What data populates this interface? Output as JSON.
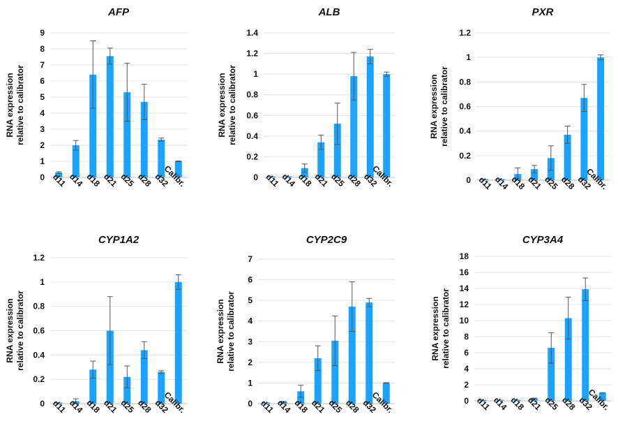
{
  "colors": {
    "bar": "#1aa3ff",
    "grid": "#e3e3e3",
    "axis": "#bfbfbf",
    "error": "#555555"
  },
  "chart_data": [
    {
      "type": "bar",
      "title": "AFP",
      "ylabel": [
        "RNA expression",
        "relative to calibrator"
      ],
      "categories": [
        "d11",
        "d14",
        "d18",
        "d21",
        "d25",
        "d28",
        "d32",
        "Calibr."
      ],
      "values": [
        0.3,
        2.0,
        6.4,
        7.55,
        5.3,
        4.7,
        2.35,
        1.0
      ],
      "errors": [
        0.05,
        0.3,
        2.1,
        0.5,
        1.8,
        1.1,
        0.1,
        0.02
      ],
      "ylim": [
        0,
        9
      ],
      "yticks": [
        "0",
        "1",
        "2",
        "3",
        "4",
        "5",
        "6",
        "7",
        "8",
        "9"
      ],
      "grid": true
    },
    {
      "type": "bar",
      "title": "ALB",
      "ylabel": [
        "RNA expression",
        "relative to calibrator"
      ],
      "categories": [
        "d11",
        "d14",
        "d18",
        "d21",
        "d25",
        "d28",
        "d32",
        "Calibr."
      ],
      "values": [
        0.0,
        0.0,
        0.09,
        0.34,
        0.52,
        0.98,
        1.17,
        1.0
      ],
      "errors": [
        0.0,
        0.0,
        0.04,
        0.07,
        0.2,
        0.23,
        0.07,
        0.02
      ],
      "ylim": [
        0,
        1.4
      ],
      "yticks": [
        "0",
        "0.2",
        "0.4",
        "0.6",
        "0.8",
        "1",
        "1.2",
        "1.4"
      ],
      "grid": true
    },
    {
      "type": "bar",
      "title": "PXR",
      "ylabel": [
        "RNA expression",
        "relative to calibrator"
      ],
      "categories": [
        "d11",
        "d14",
        "d18",
        "d21",
        "d25",
        "d28",
        "d32",
        "Calibr."
      ],
      "values": [
        0.0,
        0.01,
        0.05,
        0.09,
        0.18,
        0.37,
        0.67,
        1.0
      ],
      "errors": [
        0.0,
        0.0,
        0.05,
        0.03,
        0.1,
        0.07,
        0.11,
        0.02
      ],
      "ylim": [
        0,
        1.2
      ],
      "yticks": [
        "0",
        "0.2",
        "0.4",
        "0.6",
        "0.8",
        "1",
        "1.2"
      ],
      "grid": true
    },
    {
      "type": "bar",
      "title": "CYP1A2",
      "ylabel": [
        "RNA expression",
        "relative to calibrator"
      ],
      "categories": [
        "d11",
        "d14",
        "d18",
        "d21",
        "d25",
        "d28",
        "d32",
        "Calibr."
      ],
      "values": [
        0.0,
        0.02,
        0.28,
        0.6,
        0.22,
        0.44,
        0.26,
        1.0
      ],
      "errors": [
        0.0,
        0.02,
        0.07,
        0.28,
        0.09,
        0.07,
        0.01,
        0.06
      ],
      "ylim": [
        0,
        1.2
      ],
      "yticks": [
        "0",
        "0.2",
        "0.4",
        "0.6",
        "0.8",
        "1",
        "1.2"
      ],
      "grid": true
    },
    {
      "type": "bar",
      "title": "CYP2C9",
      "ylabel": [
        "RNA expression",
        "relative to calibrator"
      ],
      "categories": [
        "d11",
        "d14",
        "d18",
        "d21",
        "d25",
        "d28",
        "d32",
        "Calibr."
      ],
      "values": [
        0.0,
        0.08,
        0.6,
        2.2,
        3.05,
        4.7,
        4.9,
        1.0
      ],
      "errors": [
        0.0,
        0.03,
        0.3,
        0.6,
        1.2,
        1.2,
        0.2,
        0.02
      ],
      "ylim": [
        0,
        7
      ],
      "yticks": [
        "0",
        "1",
        "2",
        "3",
        "4",
        "5",
        "6",
        "7"
      ],
      "grid": true
    },
    {
      "type": "bar",
      "title": "CYP3A4",
      "ylabel": [
        "RNA expression",
        "relative to calibrator"
      ],
      "categories": [
        "d11",
        "d14",
        "d18",
        "d21",
        "d25",
        "d28",
        "d32",
        "Calibr."
      ],
      "values": [
        0.0,
        0.0,
        0.0,
        0.3,
        6.6,
        10.3,
        13.9,
        1.0
      ],
      "errors": [
        0.0,
        0.0,
        0.0,
        0.05,
        1.9,
        2.6,
        1.4,
        0.02
      ],
      "ylim": [
        0,
        18
      ],
      "yticks": [
        "0",
        "2",
        "4",
        "6",
        "8",
        "10",
        "12",
        "14",
        "16",
        "18"
      ],
      "grid": true
    }
  ]
}
